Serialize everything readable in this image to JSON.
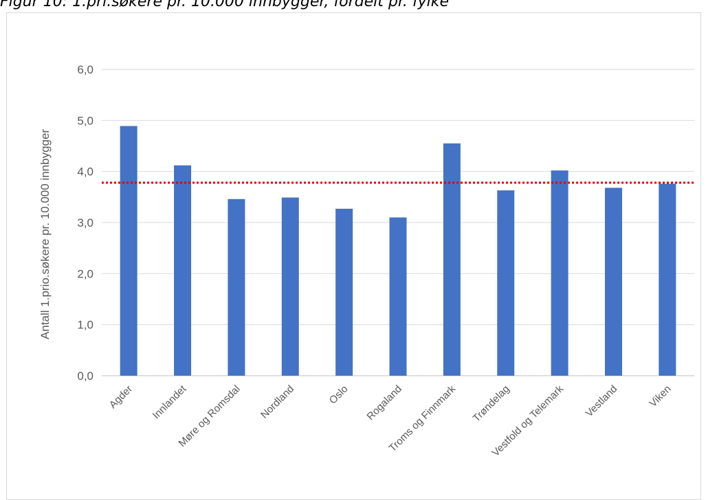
{
  "caption": "Figur 10: 1.pri.søkere pr. 10.000 innbygger, fordelt pr. fylke",
  "chart_data": {
    "type": "bar",
    "title": "",
    "xlabel": "",
    "ylabel": "Antall 1.prio.søkere pr. 10.000 innbygger",
    "categories": [
      "Agder",
      "Innlandet",
      "Møre og Romsdal",
      "Nordland",
      "Oslo",
      "Rogaland",
      "Troms og Finnmark",
      "Trøndelag",
      "Vestfold og Telemark",
      "Vestland",
      "Viken"
    ],
    "values": [
      4.89,
      4.12,
      3.46,
      3.49,
      3.27,
      3.1,
      4.55,
      3.63,
      4.02,
      3.68,
      3.76
    ],
    "ylim": [
      0,
      6
    ],
    "yticks": [
      "0,0",
      "1,0",
      "2,0",
      "3,0",
      "4,0",
      "5,0",
      "6,0"
    ],
    "reference_line": {
      "value": 3.78,
      "style": "dotted",
      "color": "#e00000"
    },
    "bar_color": "#4472c4",
    "grid": true,
    "legend": "none"
  }
}
